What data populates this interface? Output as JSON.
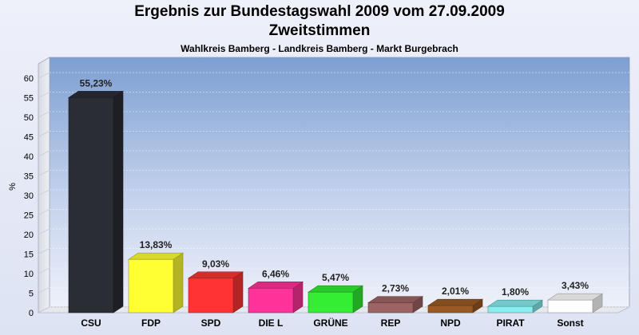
{
  "chart_data": {
    "type": "bar",
    "title": "Ergebnis zur Bundestagswahl 2009 vom 27.09.2009",
    "title2": "Zweitstimmen",
    "subtitle": "Wahlkreis Bamberg - Landkreis Bamberg - Markt Burgebrach",
    "ylabel": "%",
    "ylim": [
      0,
      65
    ],
    "yticks": [
      "0",
      "5",
      "10",
      "15",
      "20",
      "25",
      "30",
      "35",
      "40",
      "45",
      "50",
      "55",
      "60"
    ],
    "categories": [
      "CSU",
      "FDP",
      "SPD",
      "DIE L",
      "GRÜNE",
      "REP",
      "NPD",
      "PIRAT",
      "Sonst"
    ],
    "values": [
      55.23,
      13.83,
      9.03,
      6.46,
      5.47,
      2.73,
      2.01,
      1.8,
      3.43
    ],
    "value_labels": [
      "55,23%",
      "13,83%",
      "9,03%",
      "6,46%",
      "5,47%",
      "2,73%",
      "2,01%",
      "1,80%",
      "3,43%"
    ],
    "colors": [
      "#2b2d35",
      "#ffff33",
      "#ff3333",
      "#ff3399",
      "#33ee33",
      "#9e6464",
      "#9a5a26",
      "#88eeee",
      "#ffffff"
    ],
    "grid": true
  }
}
